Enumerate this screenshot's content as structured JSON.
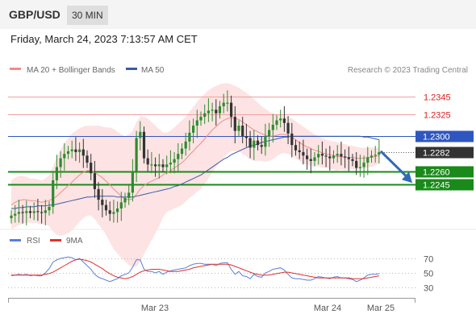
{
  "header": {
    "symbol": "GBP/USD",
    "timeframe": "30 MIN",
    "datetime": "Friday, March 24, 2023 7:13:57 AM CET"
  },
  "legend": {
    "items": [
      {
        "label": "MA 20 + Bollinger Bands",
        "color": "#f08c8c"
      },
      {
        "label": "MA 50",
        "color": "#3b5ba9"
      }
    ],
    "credit": "Research © 2023 Trading Central"
  },
  "colors": {
    "bull": "#2e8b2e",
    "bear": "#333333",
    "band_fill": "#fde3e3",
    "ma20": "#f08c8c",
    "ma50": "#3b5ba9",
    "resistance": "#e05050",
    "pivot": "#2f56c0",
    "support": "#1a8a1a",
    "rsi": "#5a7fd8",
    "rsi_ma": "#e03030",
    "arrow": "#2f6ab8"
  },
  "chart_data": [
    {
      "type": "candlestick",
      "y_range": [
        1.2208,
        1.2365
      ],
      "x_labels": [
        "Mar 23",
        "Mar 24",
        "Mar 25"
      ],
      "levels": [
        {
          "value": 1.2345,
          "label": "1.2345",
          "kind": "resistance"
        },
        {
          "value": 1.2325,
          "label": "1.2325",
          "kind": "resistance"
        },
        {
          "value": 1.23,
          "label": "1.2300",
          "kind": "pivot"
        },
        {
          "value": 1.2282,
          "label": "1.2282",
          "kind": "last"
        },
        {
          "value": 1.226,
          "label": "1.2260",
          "kind": "support"
        },
        {
          "value": 1.2245,
          "label": "1.2245",
          "kind": "support"
        }
      ],
      "forecast_arrow": {
        "from": 1.2283,
        "to": 1.2247
      },
      "closes": [
        1.221,
        1.2212,
        1.2214,
        1.2213,
        1.2215,
        1.2213,
        1.2215,
        1.2214,
        1.2213,
        1.2216,
        1.222,
        1.225,
        1.2265,
        1.2275,
        1.228,
        1.2283,
        1.2285,
        1.2282,
        1.2285,
        1.2278,
        1.227,
        1.2258,
        1.224,
        1.2228,
        1.2222,
        1.2216,
        1.2212,
        1.2214,
        1.2218,
        1.2225,
        1.223,
        1.2236,
        1.226,
        1.2298,
        1.2305,
        1.2275,
        1.2268,
        1.2268,
        1.2266,
        1.2268,
        1.2265,
        1.2268,
        1.227,
        1.2274,
        1.228,
        1.2286,
        1.2294,
        1.2304,
        1.2312,
        1.2318,
        1.2322,
        1.2326,
        1.2329,
        1.233,
        1.2326,
        1.2334,
        1.2338,
        1.2338,
        1.2322,
        1.2306,
        1.2312,
        1.23,
        1.2298,
        1.2287,
        1.2295,
        1.229,
        1.2288,
        1.23,
        1.2307,
        1.2313,
        1.2318,
        1.232,
        1.2315,
        1.2303,
        1.229,
        1.2284,
        1.2282,
        1.2278,
        1.2274,
        1.2272,
        1.2276,
        1.228,
        1.2278,
        1.2277,
        1.2275,
        1.2278,
        1.228,
        1.2277,
        1.2276,
        1.2274,
        1.2272,
        1.2264,
        1.2265,
        1.227,
        1.2276,
        1.2278,
        1.2279,
        1.2282
      ],
      "ma20": [
        1.2222,
        1.2225,
        1.2227,
        1.2228,
        1.2228,
        1.2227,
        1.2227,
        1.2226,
        1.2225,
        1.2226,
        1.2227,
        1.2229,
        1.2232,
        1.2236,
        1.224,
        1.2244,
        1.2248,
        1.2252,
        1.2256,
        1.2259,
        1.2261,
        1.2261,
        1.2259,
        1.2256,
        1.2253,
        1.2249,
        1.2245,
        1.224,
        1.2236,
        1.2232,
        1.2229,
        1.2228,
        1.2229,
        1.2234,
        1.224,
        1.2244,
        1.2247,
        1.2249,
        1.2251,
        1.2253,
        1.2256,
        1.2259,
        1.2261,
        1.2264,
        1.2267,
        1.227,
        1.2274,
        1.2279,
        1.2283,
        1.2288,
        1.2292,
        1.2297,
        1.2302,
        1.2307,
        1.2311,
        1.2315,
        1.2318,
        1.232,
        1.2321,
        1.232,
        1.2319,
        1.2316,
        1.2313,
        1.231,
        1.2307,
        1.2305,
        1.2303,
        1.2301,
        1.23,
        1.23,
        1.2301,
        1.2302,
        1.2302,
        1.2301,
        1.2299,
        1.2296,
        1.2293,
        1.229,
        1.2288,
        1.2286,
        1.2284,
        1.2283,
        1.2281,
        1.228,
        1.2279,
        1.2278,
        1.2277,
        1.2277,
        1.2276,
        1.2276,
        1.2276,
        1.2275,
        1.2275,
        1.2275,
        1.2276,
        1.2276,
        1.2277,
        1.2278
      ],
      "bb_upper": [
        1.225,
        1.2253,
        1.2255,
        1.2255,
        1.2254,
        1.2252,
        1.2252,
        1.2251,
        1.225,
        1.2252,
        1.2256,
        1.2266,
        1.2276,
        1.2285,
        1.2292,
        1.2298,
        1.2303,
        1.2306,
        1.2309,
        1.2311,
        1.2312,
        1.2312,
        1.2312,
        1.2312,
        1.2311,
        1.231,
        1.231,
        1.2308,
        1.2305,
        1.2302,
        1.23,
        1.2302,
        1.2306,
        1.2316,
        1.2322,
        1.2322,
        1.232,
        1.2316,
        1.2312,
        1.2308,
        1.2304,
        1.2304,
        1.2306,
        1.231,
        1.2314,
        1.2318,
        1.2322,
        1.2328,
        1.2333,
        1.2339,
        1.2344,
        1.2348,
        1.2352,
        1.2355,
        1.2357,
        1.2359,
        1.236,
        1.236,
        1.2359,
        1.2357,
        1.2355,
        1.2352,
        1.2349,
        1.2346,
        1.2342,
        1.2338,
        1.2334,
        1.2331,
        1.2328,
        1.2326,
        1.2325,
        1.2324,
        1.2323,
        1.2322,
        1.232,
        1.2317,
        1.2314,
        1.2311,
        1.2308,
        1.2305,
        1.2302,
        1.23,
        1.2298,
        1.2296,
        1.2295,
        1.2294,
        1.2293,
        1.2292,
        1.2291,
        1.229,
        1.2289,
        1.2288,
        1.2287,
        1.2287,
        1.2287,
        1.2287,
        1.2287,
        1.2287
      ],
      "bb_lower": [
        1.2194,
        1.2197,
        1.2199,
        1.2201,
        1.2202,
        1.2202,
        1.2202,
        1.2201,
        1.22,
        1.22,
        1.2198,
        1.2192,
        1.2188,
        1.2187,
        1.2188,
        1.219,
        1.2193,
        1.2198,
        1.2203,
        1.2207,
        1.221,
        1.221,
        1.2206,
        1.22,
        1.2195,
        1.2188,
        1.218,
        1.2172,
        1.2167,
        1.2162,
        1.2158,
        1.2154,
        1.2152,
        1.2152,
        1.2158,
        1.2166,
        1.2174,
        1.2182,
        1.219,
        1.2198,
        1.2208,
        1.2214,
        1.2216,
        1.2218,
        1.222,
        1.2222,
        1.2226,
        1.223,
        1.2233,
        1.2237,
        1.224,
        1.2246,
        1.2252,
        1.2259,
        1.2265,
        1.2271,
        1.2276,
        1.228,
        1.2283,
        1.2283,
        1.2283,
        1.228,
        1.2277,
        1.2274,
        1.2272,
        1.2272,
        1.2272,
        1.2271,
        1.2272,
        1.2274,
        1.2277,
        1.228,
        1.2281,
        1.228,
        1.2278,
        1.2275,
        1.2272,
        1.2269,
        1.2268,
        1.2267,
        1.2266,
        1.2266,
        1.2264,
        1.2264,
        1.2263,
        1.2262,
        1.2261,
        1.2262,
        1.2261,
        1.2262,
        1.2263,
        1.2262,
        1.2263,
        1.2263,
        1.2265,
        1.2265,
        1.2267,
        1.2269
      ],
      "ma50": [
        1.2218,
        1.2218,
        1.2219,
        1.2219,
        1.222,
        1.222,
        1.222,
        1.2221,
        1.2221,
        1.2221,
        1.2222,
        1.2222,
        1.2223,
        1.2224,
        1.2225,
        1.2226,
        1.2227,
        1.2228,
        1.2229,
        1.223,
        1.2231,
        1.2231,
        1.2232,
        1.2232,
        1.2232,
        1.2232,
        1.2232,
        1.2232,
        1.2231,
        1.2231,
        1.2231,
        1.2231,
        1.2231,
        1.2232,
        1.2233,
        1.2234,
        1.2235,
        1.2236,
        1.2237,
        1.2238,
        1.2239,
        1.224,
        1.2241,
        1.2243,
        1.2244,
        1.2246,
        1.2248,
        1.225,
        1.2252,
        1.2254,
        1.2256,
        1.2259,
        1.2262,
        1.2265,
        1.2268,
        1.2271,
        1.2274,
        1.2276,
        1.2279,
        1.2281,
        1.2283,
        1.2285,
        1.2287,
        1.2289,
        1.229,
        1.2291,
        1.2293,
        1.2294,
        1.2295,
        1.2296,
        1.2297,
        1.2298,
        1.2299,
        1.2299,
        1.23,
        1.23,
        1.23,
        1.23,
        1.23,
        1.23,
        1.23,
        1.23,
        1.23,
        1.23,
        1.23,
        1.23,
        1.23,
        1.23,
        1.23,
        1.23,
        1.23,
        1.23,
        1.23,
        1.2299,
        1.2299,
        1.2298,
        1.2297,
        1.2296
      ]
    },
    {
      "type": "line",
      "series": [
        {
          "name": "RSI"
        },
        {
          "name": "9MA"
        }
      ],
      "y_range": [
        20,
        80
      ],
      "y_ticks": [
        70,
        50,
        30
      ],
      "rsi": [
        46,
        47,
        48,
        47,
        48,
        46,
        47,
        46,
        46,
        50,
        56,
        65,
        68,
        70,
        71,
        72,
        71,
        68,
        70,
        65,
        60,
        55,
        48,
        44,
        42,
        40,
        38,
        40,
        42,
        46,
        48,
        50,
        58,
        68,
        68,
        55,
        52,
        52,
        50,
        52,
        48,
        51,
        53,
        54,
        55,
        56,
        57,
        60,
        62,
        63,
        63,
        62,
        62,
        62,
        60,
        63,
        64,
        64,
        55,
        48,
        52,
        46,
        45,
        42,
        48,
        45,
        44,
        50,
        52,
        55,
        56,
        57,
        54,
        48,
        43,
        42,
        42,
        41,
        40,
        40,
        42,
        45,
        44,
        43,
        42,
        44,
        45,
        43,
        43,
        42,
        41,
        38,
        40,
        43,
        47,
        48,
        48,
        49
      ],
      "rsi_ma": [
        47,
        47,
        47,
        47,
        47,
        47,
        47,
        47,
        47,
        48,
        49,
        51,
        54,
        57,
        60,
        63,
        66,
        68,
        69,
        68,
        67,
        65,
        62,
        59,
        56,
        52,
        49,
        46,
        44,
        43,
        42,
        43,
        45,
        48,
        51,
        53,
        54,
        55,
        55,
        55,
        54,
        53,
        52,
        52,
        52,
        53,
        54,
        55,
        57,
        58,
        59,
        60,
        61,
        62,
        62,
        62,
        62,
        62,
        61,
        59,
        57,
        55,
        53,
        51,
        49,
        48,
        47,
        47,
        47,
        48,
        49,
        50,
        51,
        51,
        50,
        49,
        48,
        47,
        46,
        45,
        44,
        43,
        43,
        43,
        43,
        43,
        43,
        43,
        43,
        43,
        42,
        42,
        42,
        42,
        43,
        44,
        45,
        46
      ]
    }
  ]
}
